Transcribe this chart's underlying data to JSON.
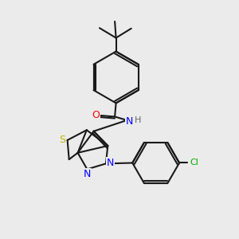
{
  "background_color": "#ebebeb",
  "line_color": "#1a1a1a",
  "bond_width": 1.5,
  "figsize": [
    3.0,
    3.0
  ],
  "dpi": 100,
  "atoms": {
    "S": {
      "color": "#b8b800",
      "fontsize": 9
    },
    "N": {
      "color": "#0000ff",
      "fontsize": 9
    },
    "O": {
      "color": "#ff0000",
      "fontsize": 9
    },
    "Cl": {
      "color": "#00aa00",
      "fontsize": 8
    },
    "H": {
      "color": "#666666",
      "fontsize": 8
    }
  }
}
